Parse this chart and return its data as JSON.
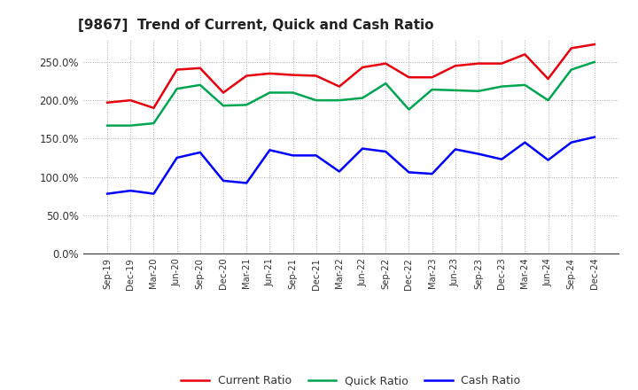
{
  "title": "[9867]  Trend of Current, Quick and Cash Ratio",
  "x_labels": [
    "Sep-19",
    "Dec-19",
    "Mar-20",
    "Jun-20",
    "Sep-20",
    "Dec-20",
    "Mar-21",
    "Jun-21",
    "Sep-21",
    "Dec-21",
    "Mar-22",
    "Jun-22",
    "Sep-22",
    "Dec-22",
    "Mar-23",
    "Jun-23",
    "Sep-23",
    "Dec-23",
    "Mar-24",
    "Jun-24",
    "Sep-24",
    "Dec-24"
  ],
  "current_ratio": [
    197,
    200,
    190,
    240,
    242,
    210,
    232,
    235,
    233,
    232,
    218,
    243,
    248,
    230,
    230,
    245,
    248,
    248,
    260,
    228,
    268,
    273
  ],
  "quick_ratio": [
    167,
    167,
    170,
    215,
    220,
    193,
    194,
    210,
    210,
    200,
    200,
    203,
    222,
    188,
    214,
    213,
    212,
    218,
    220,
    200,
    240,
    250
  ],
  "cash_ratio": [
    78,
    82,
    78,
    125,
    132,
    95,
    92,
    135,
    128,
    128,
    107,
    137,
    133,
    106,
    104,
    136,
    130,
    123,
    145,
    122,
    145,
    152
  ],
  "current_color": "#e8000d",
  "quick_color": "#00a550",
  "cash_color": "#0000ff",
  "ylim": [
    0,
    280
  ],
  "yticks": [
    0,
    50,
    100,
    150,
    200,
    250
  ],
  "background_color": "#ffffff",
  "plot_bg_color": "#ffffff",
  "grid_color": "#aaaaaa",
  "line_width": 1.8
}
